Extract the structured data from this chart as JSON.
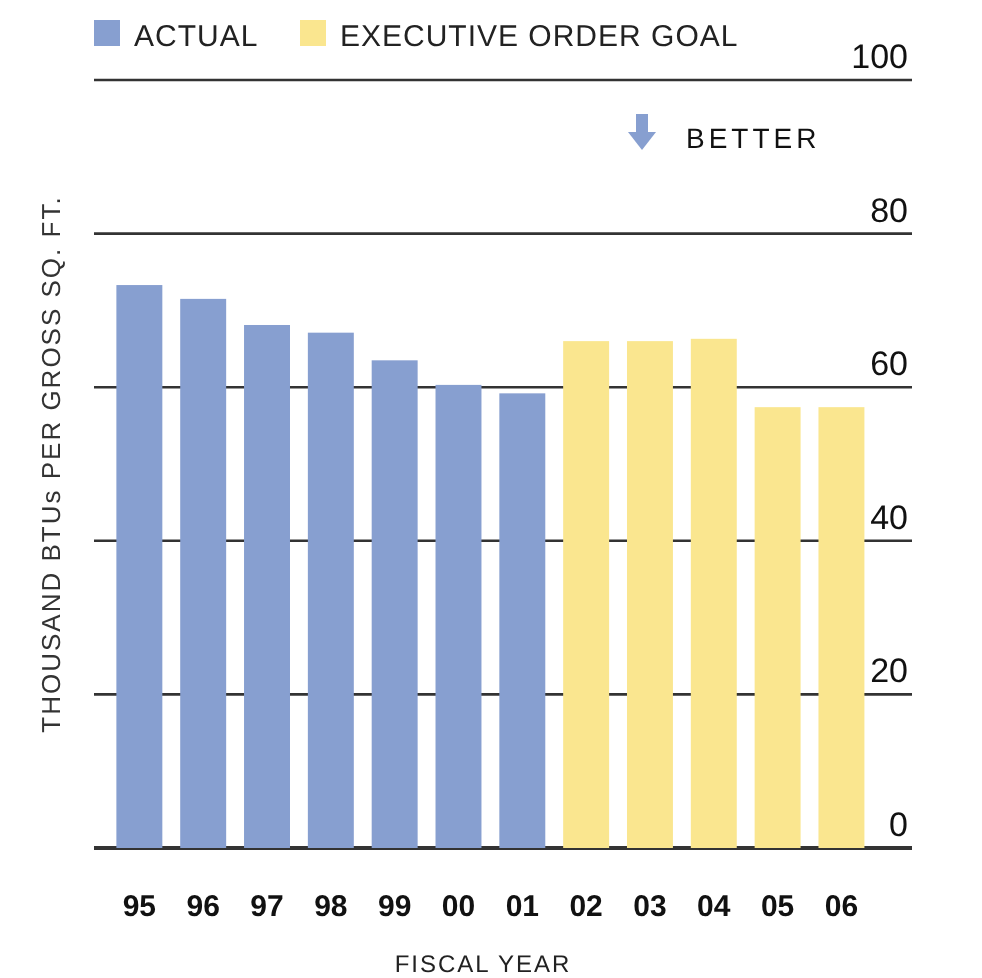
{
  "chart_data": {
    "type": "bar",
    "xlabel": "FISCAL YEAR",
    "ylabel": "THOUSAND BTUs PER GROSS SQ. FT.",
    "categories": [
      "95",
      "96",
      "97",
      "98",
      "99",
      "00",
      "01",
      "02",
      "03",
      "04",
      "05",
      "06"
    ],
    "series": [
      {
        "name": "ACTUAL",
        "color": "#879fd0",
        "values": [
          73.3,
          71.5,
          68.1,
          67.1,
          63.5,
          60.3,
          59.2,
          null,
          null,
          null,
          null,
          null
        ]
      },
      {
        "name": "EXECUTIVE ORDER GOAL",
        "color": "#fae68f",
        "values": [
          null,
          null,
          null,
          null,
          null,
          null,
          null,
          66.0,
          66.0,
          66.3,
          57.4,
          57.4
        ]
      }
    ],
    "ylim": [
      0,
      100
    ],
    "yticks": [
      0,
      20,
      40,
      60,
      80,
      100
    ],
    "grid": "y",
    "legend": "top left",
    "annotations": [
      "BETTER"
    ]
  }
}
